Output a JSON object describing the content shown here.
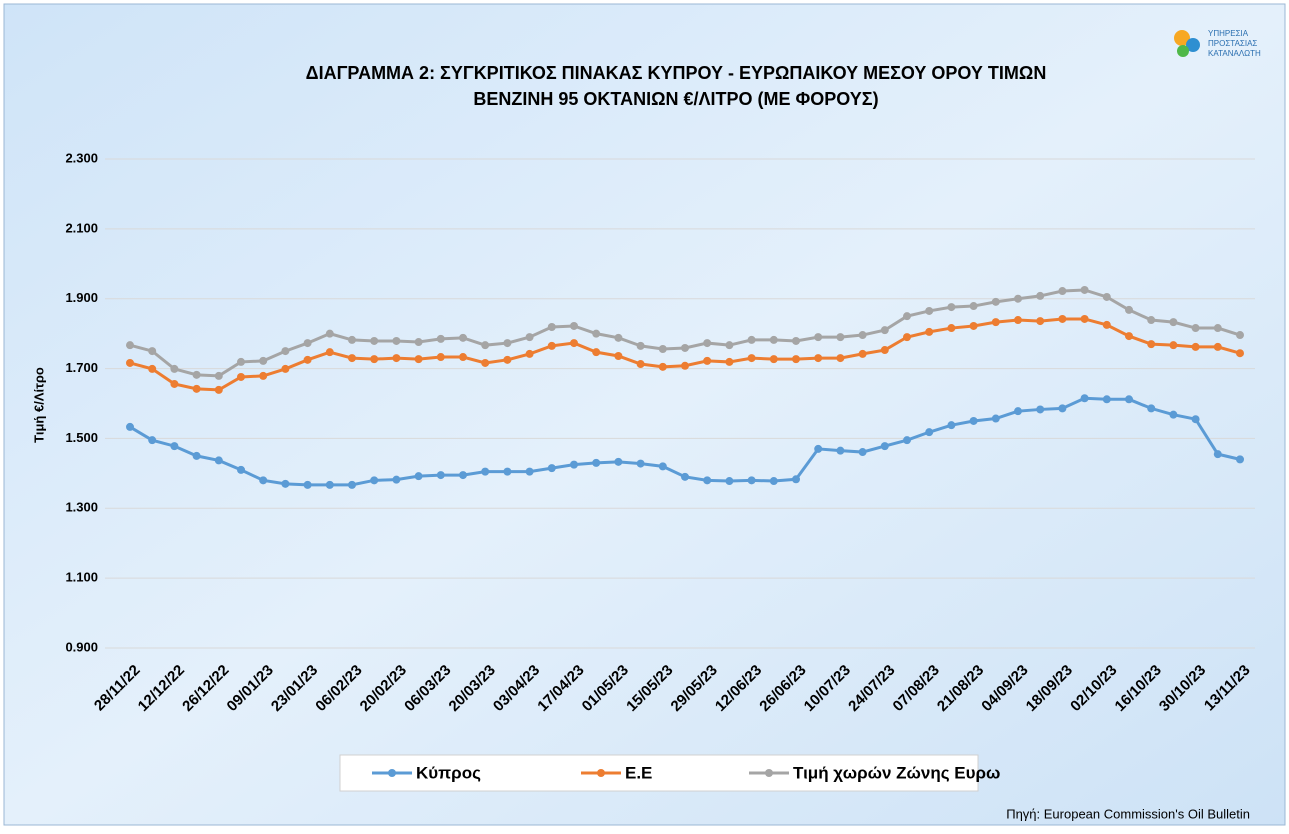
{
  "chart_data": {
    "type": "line",
    "title": [
      "ΔΙΑΓΡΑΜΜΑ 2: ΣΥΓΚΡΙΤΙΚΟΣ ΠΙΝΑΚΑΣ ΚΥΠΡΟΥ - ΕΥΡΩΠΑΙΚΟΥ ΜΕΣΟΥ ΟΡΟΥ ΤΙΜΩΝ",
      "ΒΕΝΖΙΝΗ 95 ΟΚΤΑΝΙΩΝ €/ΛΙΤΡΟ (ΜΕ ΦΟΡΟΥΣ)"
    ],
    "y_label": "Τιμή €/Λίτρο",
    "source": "Πηγή: European Commission's Oil Bulletin",
    "logo": [
      "ΥΠΗΡΕΣΙΑ",
      "ΠΡΟΣΤΑΣΙΑΣ",
      "ΚΑΤΑΝΑΛΩΤΗ"
    ],
    "categories": [
      "28/11/22",
      null,
      "12/12/22",
      null,
      "26/12/22",
      null,
      "09/01/23",
      null,
      "23/01/23",
      null,
      "06/02/23",
      null,
      "20/02/23",
      null,
      "06/03/23",
      null,
      "20/03/23",
      null,
      "03/04/23",
      null,
      "17/04/23",
      null,
      "01/05/23",
      null,
      "15/05/23",
      null,
      "29/05/23",
      null,
      "12/06/23",
      null,
      "26/06/23",
      null,
      "10/07/23",
      null,
      "24/07/23",
      null,
      "07/08/23",
      null,
      "21/08/23",
      null,
      "04/09/23",
      null,
      "18/09/23",
      null,
      "02/10/23",
      null,
      "16/10/23",
      null,
      "30/10/23",
      null,
      "13/11/23"
    ],
    "series": [
      {
        "name": "Κύπρος",
        "color": "#5b9bd5",
        "values": [
          1.533,
          1.495,
          1.478,
          1.45,
          1.437,
          1.41,
          1.38,
          1.37,
          1.367,
          1.367,
          1.367,
          1.38,
          1.382,
          1.392,
          1.395,
          1.395,
          1.405,
          1.405,
          1.405,
          1.415,
          1.425,
          1.43,
          1.433,
          1.428,
          1.42,
          1.39,
          1.38,
          1.378,
          1.38,
          1.378,
          1.383,
          1.47,
          1.465,
          1.461,
          1.478,
          1.495,
          1.518,
          1.538,
          1.55,
          1.557,
          1.578,
          1.583,
          1.586,
          1.615,
          1.612,
          1.612,
          1.586,
          1.568,
          1.555,
          1.455,
          1.44
        ]
      },
      {
        "name": "Ε.Ε",
        "color": "#ed7d31",
        "values": [
          1.716,
          1.699,
          1.656,
          1.642,
          1.639,
          1.676,
          1.679,
          1.699,
          1.725,
          1.747,
          1.73,
          1.727,
          1.73,
          1.727,
          1.733,
          1.733,
          1.716,
          1.725,
          1.742,
          1.765,
          1.773,
          1.747,
          1.736,
          1.713,
          1.705,
          1.708,
          1.722,
          1.719,
          1.73,
          1.727,
          1.727,
          1.73,
          1.73,
          1.742,
          1.753,
          1.79,
          1.805,
          1.816,
          1.822,
          1.833,
          1.839,
          1.836,
          1.842,
          1.842,
          1.825,
          1.793,
          1.77,
          1.767,
          1.762,
          1.762,
          1.744
        ]
      },
      {
        "name": "Τιμή χωρών Ζώνης Ευρω",
        "color": "#a5a5a5",
        "values": [
          1.767,
          1.75,
          1.699,
          1.682,
          1.679,
          1.719,
          1.722,
          1.75,
          1.773,
          1.8,
          1.782,
          1.779,
          1.779,
          1.776,
          1.785,
          1.788,
          1.767,
          1.773,
          1.79,
          1.819,
          1.822,
          1.8,
          1.788,
          1.765,
          1.756,
          1.759,
          1.773,
          1.767,
          1.782,
          1.782,
          1.779,
          1.79,
          1.79,
          1.796,
          1.81,
          1.85,
          1.865,
          1.876,
          1.879,
          1.891,
          1.9,
          1.908,
          1.922,
          1.925,
          1.905,
          1.868,
          1.839,
          1.833,
          1.816,
          1.816,
          1.796
        ]
      }
    ],
    "ylim": [
      0.9,
      2.3
    ],
    "yticks": [
      {
        "value": 0.9,
        "label": "0.900"
      },
      {
        "value": 1.1,
        "label": "1.100"
      },
      {
        "value": 1.3,
        "label": "1.300"
      },
      {
        "value": 1.5,
        "label": "1.500"
      },
      {
        "value": 1.7,
        "label": "1.700"
      },
      {
        "value": 1.9,
        "label": "1.900"
      },
      {
        "value": 2.1,
        "label": "2.100"
      },
      {
        "value": 2.3,
        "label": "2.300"
      }
    ],
    "grid": true,
    "legend": "bottom"
  }
}
